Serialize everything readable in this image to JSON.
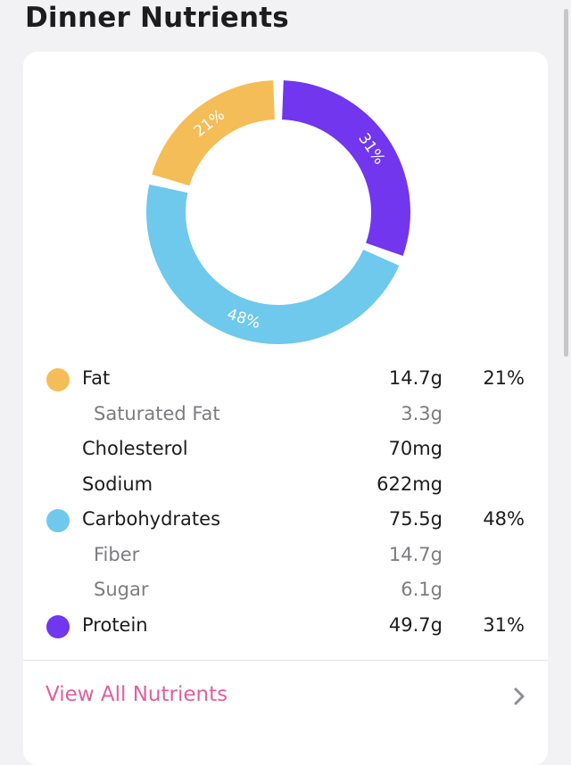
{
  "page": {
    "title": "Dinner Nutrients"
  },
  "chart_data": {
    "type": "pie",
    "variant": "donut",
    "slices": [
      {
        "label": "Fat",
        "percent": 21,
        "percent_label": "21%",
        "color": "#f5bd57"
      },
      {
        "label": "Protein",
        "percent": 31,
        "percent_label": "31%",
        "color": "#7136ee"
      },
      {
        "label": "Carbohydrates",
        "percent": 48,
        "percent_label": "48%",
        "color": "#6ec9ec"
      }
    ],
    "start_angle_deg": 0,
    "order": [
      "Protein",
      "Carbohydrates",
      "Fat"
    ]
  },
  "nutrients": [
    {
      "name": "Fat",
      "amount": "14.7g",
      "percent": "21%",
      "color": "#f5bd57",
      "sub": false
    },
    {
      "name": "Saturated Fat",
      "amount": "3.3g",
      "percent": "",
      "color": "",
      "sub": true
    },
    {
      "name": "Cholesterol",
      "amount": "70mg",
      "percent": "",
      "color": "",
      "sub": false
    },
    {
      "name": "Sodium",
      "amount": "622mg",
      "percent": "",
      "color": "",
      "sub": false
    },
    {
      "name": "Carbohydrates",
      "amount": "75.5g",
      "percent": "48%",
      "color": "#6ec9ec",
      "sub": false
    },
    {
      "name": "Fiber",
      "amount": "14.7g",
      "percent": "",
      "color": "",
      "sub": true
    },
    {
      "name": "Sugar",
      "amount": "6.1g",
      "percent": "",
      "color": "",
      "sub": true
    },
    {
      "name": "Protein",
      "amount": "49.7g",
      "percent": "31%",
      "color": "#7136ee",
      "sub": false
    }
  ],
  "footer": {
    "view_all_label": "View All Nutrients",
    "view_all_color": "#e0609c",
    "chevron_icon": "chevron-right-icon"
  }
}
